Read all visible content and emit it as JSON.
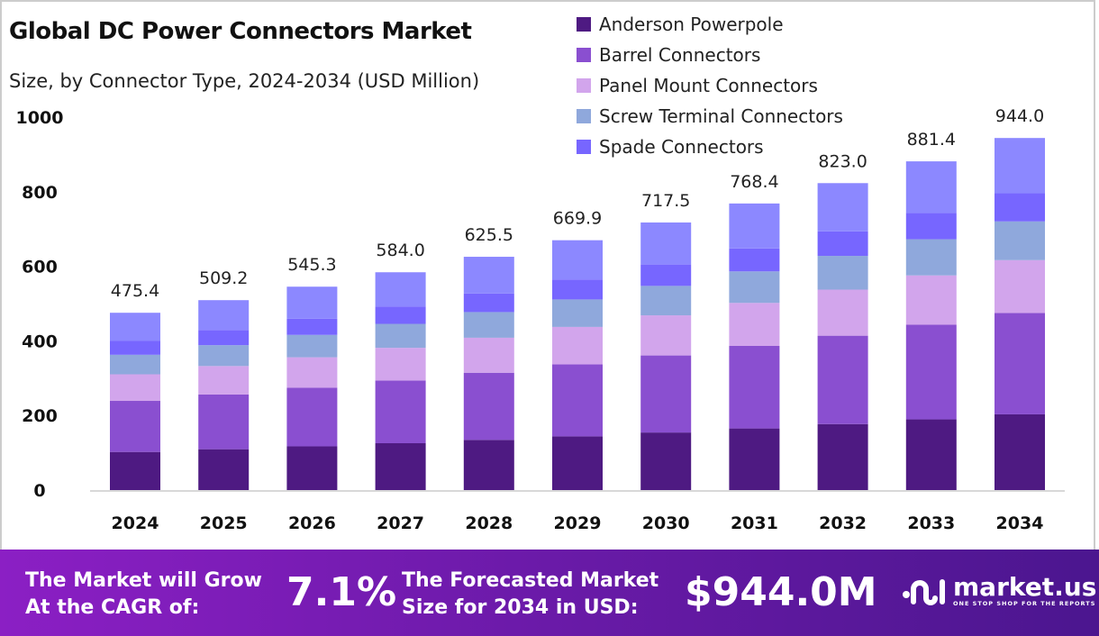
{
  "chart_data": {
    "type": "bar",
    "stacked": true,
    "title": "Global DC Power Connectors Market",
    "subtitle": "Size, by Connector Type, 2024-2034 (USD Million)",
    "categories": [
      "2024",
      "2025",
      "2026",
      "2027",
      "2028",
      "2029",
      "2030",
      "2031",
      "2032",
      "2033",
      "2034"
    ],
    "totals": [
      "475.4",
      "509.2",
      "545.3",
      "584.0",
      "625.5",
      "669.9",
      "717.5",
      "768.4",
      "823.0",
      "881.4",
      "944.0"
    ],
    "series": [
      {
        "name": "Anderson Powerpole",
        "color": "#4e1a82",
        "values": [
          102.2,
          109.5,
          117.2,
          125.6,
          134.5,
          144.0,
          154.3,
          165.2,
          176.9,
          189.5,
          203.0
        ]
      },
      {
        "name": "Barrel Connectors",
        "color": "#8a4fd0",
        "values": [
          136.9,
          146.6,
          157.0,
          168.2,
          180.1,
          192.9,
          206.6,
          221.3,
          237.0,
          253.8,
          271.9
        ]
      },
      {
        "name": "Panel Mount Connectors",
        "color": "#d2a5ec",
        "values": [
          71.3,
          76.4,
          81.8,
          87.6,
          93.8,
          100.5,
          107.6,
          115.3,
          123.5,
          132.2,
          141.6
        ]
      },
      {
        "name": "Screw Terminal Connectors",
        "color": "#8fa8dc",
        "values": [
          52.3,
          56.0,
          60.0,
          64.2,
          68.8,
          73.7,
          78.9,
          84.5,
          90.5,
          97.0,
          103.8
        ]
      },
      {
        "name": "Spade Connectors",
        "color": "#7766ff",
        "values": [
          38.0,
          40.7,
          43.6,
          46.7,
          50.0,
          53.6,
          57.4,
          61.5,
          65.8,
          70.5,
          75.5
        ]
      },
      {
        "color": "#8c88ff",
        "values": [
          74.7,
          80.0,
          85.7,
          91.7,
          98.3,
          105.2,
          112.7,
          120.6,
          129.3,
          138.4,
          148.2
        ]
      }
    ],
    "yticks": [
      "0",
      "200",
      "400",
      "600",
      "800",
      "1000"
    ],
    "ylim": [
      0,
      1000
    ],
    "grid": false,
    "legend": "top-right"
  },
  "footer": {
    "cagr_label_1": "The Market will Grow",
    "cagr_label_2": "At the CAGR of:",
    "cagr_value": "7.1%",
    "forecast_label_1": "The Forecasted Market",
    "forecast_label_2": "Size for 2034 in USD:",
    "forecast_value": "$944.0M",
    "brand": "market.us",
    "tagline": "ONE STOP SHOP FOR THE REPORTS"
  }
}
